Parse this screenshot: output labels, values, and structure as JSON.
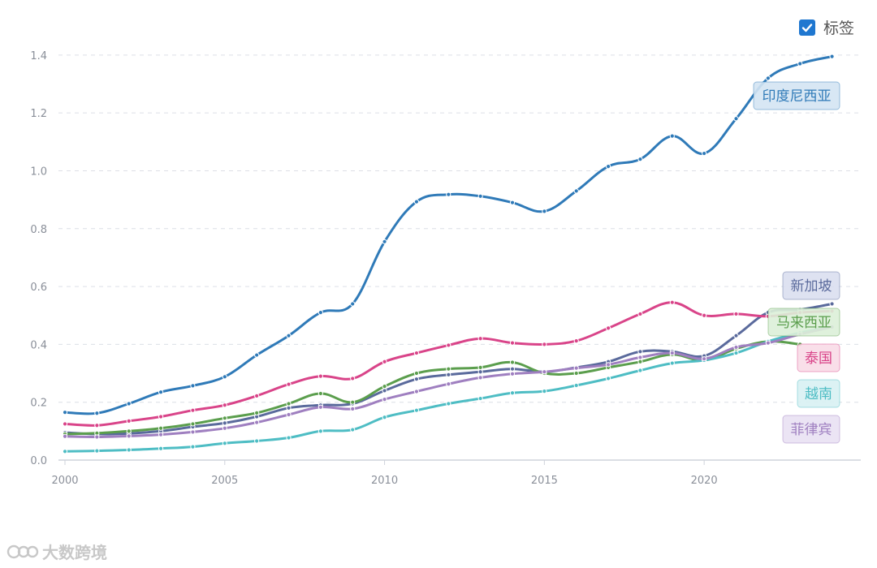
{
  "legend_toggle": {
    "label": "标签",
    "checked": true
  },
  "watermark": {
    "text": "大数跨境"
  },
  "chart_data": {
    "type": "line",
    "title": "",
    "xlabel": "",
    "ylabel": "",
    "x": [
      2000,
      2001,
      2002,
      2003,
      2004,
      2005,
      2006,
      2007,
      2008,
      2009,
      2010,
      2011,
      2012,
      2013,
      2014,
      2015,
      2016,
      2017,
      2018,
      2019,
      2020,
      2021,
      2022,
      2023,
      2024
    ],
    "x_ticks": [
      2000,
      2005,
      2010,
      2015,
      2020
    ],
    "y_ticks": [
      0.0,
      0.2,
      0.4,
      0.6,
      0.8,
      1.0,
      1.2,
      1.4
    ],
    "y_tick_labels": [
      "0.0",
      "0.2",
      "0.4",
      "0.6",
      "0.8",
      "1.0",
      "1.2",
      "1.4"
    ],
    "ylim": [
      0,
      1.45
    ],
    "xlim": [
      2000,
      2024.9
    ],
    "grid": "horizontal-dashed",
    "series": [
      {
        "name": "印度尼西亚",
        "color": "#2f7ab8",
        "label_bg": "#d4e4f3",
        "values": [
          0.165,
          0.162,
          0.195,
          0.235,
          0.257,
          0.288,
          0.363,
          0.43,
          0.51,
          0.54,
          0.755,
          0.893,
          0.918,
          0.912,
          0.89,
          0.86,
          0.93,
          1.015,
          1.04,
          1.12,
          1.06,
          1.18,
          1.32,
          1.37,
          1.395
        ]
      },
      {
        "name": "新加坡",
        "color": "#5a6a9c",
        "label_bg": "#dadff0",
        "values": [
          0.095,
          0.09,
          0.092,
          0.1,
          0.115,
          0.128,
          0.15,
          0.18,
          0.19,
          0.195,
          0.24,
          0.28,
          0.295,
          0.305,
          0.315,
          0.305,
          0.32,
          0.34,
          0.375,
          0.375,
          0.36,
          0.43,
          0.51,
          0.52,
          0.54
        ]
      },
      {
        "name": "马来西亚",
        "color": "#5b9e4d",
        "label_bg": "#dcefd8",
        "values": [
          0.09,
          0.093,
          0.1,
          0.11,
          0.125,
          0.145,
          0.163,
          0.195,
          0.23,
          0.2,
          0.255,
          0.3,
          0.315,
          0.32,
          0.338,
          0.3,
          0.3,
          0.32,
          0.34,
          0.365,
          0.345,
          0.385,
          0.41,
          0.4,
          null
        ]
      },
      {
        "name": "泰国",
        "color": "#d94489",
        "label_bg": "#f8dbe7",
        "values": [
          0.125,
          0.12,
          0.135,
          0.15,
          0.172,
          0.19,
          0.222,
          0.262,
          0.29,
          0.282,
          0.34,
          0.37,
          0.397,
          0.42,
          0.405,
          0.4,
          0.412,
          0.456,
          0.505,
          0.545,
          0.5,
          0.505,
          0.497,
          0.51,
          0.515
        ]
      },
      {
        "name": "越南",
        "color": "#4ebdc4",
        "label_bg": "#d8f1f3",
        "values": [
          0.03,
          0.032,
          0.035,
          0.04,
          0.046,
          0.058,
          0.066,
          0.077,
          0.1,
          0.105,
          0.148,
          0.172,
          0.195,
          0.213,
          0.232,
          0.238,
          0.258,
          0.282,
          0.31,
          0.335,
          0.345,
          0.37,
          0.41,
          0.44,
          0.46
        ]
      },
      {
        "name": "菲律宾",
        "color": "#9f7fc0",
        "label_bg": "#e9e1f3",
        "values": [
          0.082,
          0.08,
          0.083,
          0.088,
          0.097,
          0.11,
          0.13,
          0.157,
          0.183,
          0.177,
          0.21,
          0.237,
          0.263,
          0.285,
          0.298,
          0.305,
          0.318,
          0.33,
          0.355,
          0.37,
          0.35,
          0.39,
          0.405,
          0.435,
          0.46
        ]
      }
    ]
  }
}
